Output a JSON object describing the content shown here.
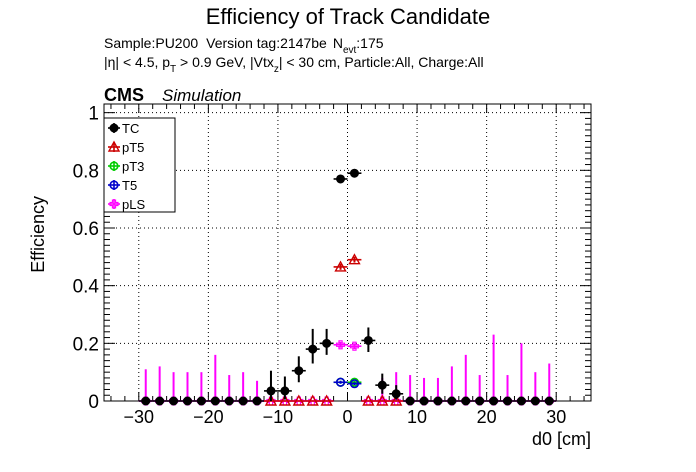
{
  "figure": {
    "title": "Efficiency of Track Candidate",
    "info_line1": {
      "sample": "Sample:PU200",
      "version": "Version tag:2147be",
      "nevt_label": "N",
      "nevt_sub": "evt",
      "nevt_value": ":175"
    },
    "info_line2": {
      "eta": "|η| < 4.5, p",
      "pt_sub": "T",
      "pt_cut": " > 0.9 GeV, |Vtx",
      "vtx_sub": "z",
      "rest": "| < 30 cm, Particle:All, Charge:All"
    },
    "cms_label": "CMS",
    "cms_sublabel": "Simulation"
  },
  "chart_data": {
    "type": "scatter",
    "title": "Efficiency of Track Candidate",
    "xlabel": "d0 [cm]",
    "ylabel": "Efficiency",
    "xlim": [
      -35,
      35
    ],
    "ylim": [
      0,
      1.03
    ],
    "x_ticks": [
      -30,
      -20,
      -10,
      0,
      10,
      20,
      30
    ],
    "x_tick_labels": [
      "−30",
      "−20",
      "−10",
      "0",
      "10",
      "20",
      "30"
    ],
    "y_ticks": [
      0,
      0.2,
      0.4,
      0.6,
      0.8,
      1
    ],
    "y_tick_labels": [
      "0",
      "0.2",
      "0.4",
      "0.6",
      "0.8",
      "1"
    ],
    "grid": true,
    "legend_position": "top-left",
    "x_bin_halfwidth": 1,
    "series": [
      {
        "name": "TC",
        "color": "#000000",
        "marker": "filled-circle",
        "x": [
          -29,
          -27,
          -25,
          -23,
          -21,
          -19,
          -17,
          -15,
          -13,
          -11,
          -9,
          -7,
          -5,
          -3,
          -1,
          1,
          3,
          5,
          7,
          9,
          11,
          13,
          15,
          17,
          19,
          21,
          23,
          25,
          27,
          29
        ],
        "y": [
          0,
          0,
          0,
          0,
          0,
          0,
          0,
          0,
          0,
          0.035,
          0.035,
          0.105,
          0.18,
          0.2,
          0.77,
          0.79,
          0.21,
          0.055,
          0.025,
          0,
          0,
          0,
          0,
          0,
          0,
          0,
          0,
          0,
          0,
          0
        ],
        "err_up": [
          0,
          0,
          0,
          0,
          0,
          0,
          0,
          0,
          0,
          0.07,
          0.05,
          0.05,
          0.07,
          0.05,
          0.01,
          0.01,
          0.045,
          0.04,
          0.03,
          0,
          0,
          0,
          0,
          0,
          0,
          0,
          0,
          0,
          0,
          0
        ],
        "err_down": [
          0,
          0,
          0,
          0,
          0,
          0,
          0,
          0,
          0,
          0.035,
          0.03,
          0.04,
          0.05,
          0.04,
          0.01,
          0.01,
          0.04,
          0.03,
          0.02,
          0,
          0,
          0,
          0,
          0,
          0,
          0,
          0,
          0,
          0,
          0
        ]
      },
      {
        "name": "pT5",
        "color": "#cc0000",
        "marker": "open-triangle",
        "x": [
          -11,
          -9,
          -7,
          -5,
          -3,
          -1,
          1,
          3,
          5,
          7
        ],
        "y": [
          0,
          0,
          0,
          0,
          0,
          0.465,
          0.49,
          0,
          0,
          0
        ],
        "err_up": [
          0,
          0,
          0,
          0,
          0,
          0.01,
          0.01,
          0,
          0,
          0
        ],
        "err_down": [
          0,
          0,
          0,
          0,
          0,
          0.01,
          0.01,
          0,
          0,
          0
        ]
      },
      {
        "name": "pT3",
        "color": "#00cc00",
        "marker": "open-circle",
        "x": [
          -1,
          1
        ],
        "y": [
          0.065,
          0.065
        ],
        "err_up": [
          0.005,
          0.005
        ],
        "err_down": [
          0.005,
          0.005
        ]
      },
      {
        "name": "T5",
        "color": "#0000cc",
        "marker": "open-circle",
        "x": [
          -1,
          1
        ],
        "y": [
          0.065,
          0.06
        ],
        "err_up": [
          0.005,
          0.005
        ],
        "err_down": [
          0.005,
          0.005
        ]
      },
      {
        "name": "pLS",
        "color": "#ff00ff",
        "marker": "open-cross",
        "x": [
          -29,
          -27,
          -25,
          -23,
          -21,
          -19,
          -17,
          -15,
          -13,
          -11,
          -9,
          -7,
          -5,
          -3,
          -1,
          1,
          3,
          5,
          7,
          9,
          11,
          13,
          15,
          17,
          19,
          21,
          23,
          25,
          27,
          29
        ],
        "y": [
          0,
          0,
          0,
          0,
          0,
          0,
          0,
          0,
          0,
          0,
          0,
          0,
          0,
          0,
          0.195,
          0.19,
          0,
          0,
          0,
          0,
          0,
          0,
          0,
          0,
          0,
          0,
          0,
          0,
          0,
          0
        ],
        "err_up": [
          0.11,
          0.12,
          0.1,
          0.1,
          0.1,
          0.16,
          0.09,
          0.1,
          0.07,
          0,
          0,
          0,
          0,
          0,
          0.01,
          0.01,
          0,
          0.08,
          0.1,
          0.09,
          0.08,
          0.08,
          0.12,
          0.16,
          0.09,
          0.23,
          0.09,
          0.2,
          0.1,
          0.13
        ],
        "err_down": [
          0,
          0,
          0,
          0,
          0,
          0,
          0,
          0,
          0,
          0,
          0,
          0,
          0,
          0,
          0.01,
          0.01,
          0,
          0,
          0,
          0,
          0,
          0,
          0,
          0,
          0,
          0,
          0,
          0,
          0,
          0
        ]
      }
    ]
  }
}
